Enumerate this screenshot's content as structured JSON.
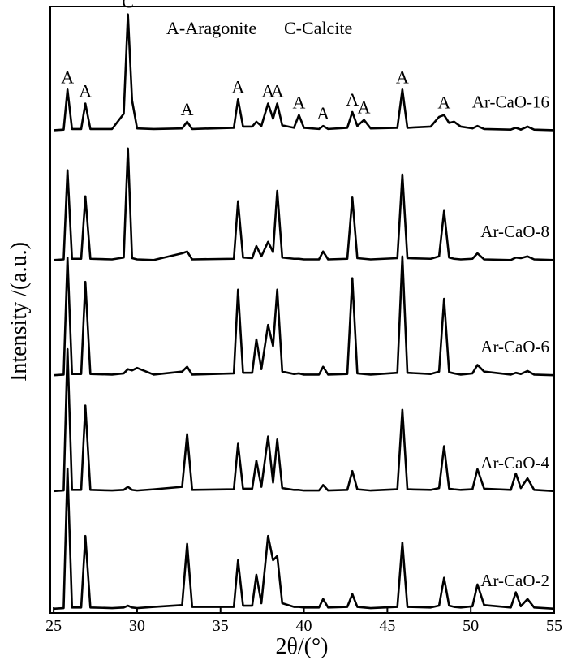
{
  "chart_data": {
    "type": "line",
    "xlabel": "2θ/(°)",
    "ylabel": "Intensity /(a.u.)",
    "legend_text": [
      "A-Aragonite",
      "C-Calcite"
    ],
    "xlim": [
      24.8,
      55
    ],
    "xticks": [
      25,
      30,
      35,
      40,
      45,
      50,
      55
    ],
    "ylim": [
      0,
      100
    ],
    "x": [
      25,
      25.6,
      25.83,
      26.1,
      26.65,
      26.9,
      27.2,
      28.5,
      29.2,
      29.45,
      29.7,
      30.0,
      31,
      32.7,
      33.0,
      33.3,
      35.8,
      36.05,
      36.35,
      36.9,
      37.15,
      37.45,
      37.85,
      38.15,
      38.4,
      38.7,
      39.4,
      39.7,
      40.0,
      40.9,
      41.15,
      41.45,
      42.6,
      42.9,
      43.2,
      43.6,
      44,
      45.6,
      45.9,
      46.2,
      47.6,
      48.1,
      48.4,
      48.7,
      49.0,
      49.4,
      50.1,
      50.4,
      50.8,
      52.4,
      52.7,
      53.0,
      53.4,
      53.8,
      55
    ],
    "series": [
      {
        "name": "Ar-CaO-16",
        "color": "#000000",
        "values": [
          79.6,
          79.7,
          86.3,
          79.8,
          79.8,
          84.0,
          79.8,
          79.8,
          82.3,
          98.7,
          84.5,
          79.9,
          79.8,
          79.9,
          81.0,
          79.8,
          80.0,
          84.7,
          80.2,
          80.2,
          81.0,
          80.3,
          84.0,
          81.5,
          84.0,
          80.4,
          80.0,
          82.1,
          80.0,
          79.8,
          80.3,
          79.8,
          80.0,
          82.6,
          80.3,
          81.3,
          79.9,
          80.0,
          86.3,
          80.0,
          80.2,
          81.8,
          82.1,
          80.8,
          81.0,
          80.2,
          79.9,
          80.3,
          79.8,
          79.7,
          80.0,
          79.7,
          80.2,
          79.7,
          79.6
        ]
      },
      {
        "name": "Ar-CaO-8",
        "color": "#000000",
        "values": [
          58.2,
          58.3,
          73.0,
          58.4,
          58.4,
          68.7,
          58.4,
          58.3,
          58.6,
          76.6,
          58.5,
          58.3,
          58.2,
          59.3,
          59.6,
          58.3,
          58.4,
          67.9,
          58.6,
          58.5,
          60.5,
          58.8,
          61.2,
          59.5,
          69.6,
          58.6,
          58.4,
          58.4,
          58.3,
          58.3,
          59.6,
          58.3,
          58.4,
          68.5,
          58.5,
          58.4,
          58.3,
          58.5,
          72.3,
          58.5,
          58.4,
          58.8,
          66.3,
          58.6,
          58.4,
          58.3,
          58.4,
          59.3,
          58.3,
          58.2,
          58.6,
          58.5,
          58.8,
          58.3,
          58.2
        ]
      },
      {
        "name": "Ar-CaO-6",
        "color": "#000000",
        "values": [
          39.2,
          39.3,
          58.6,
          39.4,
          39.4,
          54.6,
          39.4,
          39.3,
          39.5,
          40.2,
          40.0,
          40.4,
          39.3,
          39.8,
          40.6,
          39.3,
          39.5,
          53.3,
          39.6,
          39.6,
          45.1,
          40.2,
          47.5,
          44.0,
          53.3,
          39.8,
          39.4,
          39.5,
          39.3,
          39.3,
          40.6,
          39.3,
          39.4,
          55.2,
          39.5,
          39.4,
          39.3,
          39.6,
          58.8,
          39.6,
          39.4,
          39.8,
          51.8,
          39.7,
          39.5,
          39.3,
          39.5,
          40.9,
          39.8,
          39.3,
          39.6,
          39.4,
          39.9,
          39.3,
          39.2
        ]
      },
      {
        "name": "Ar-CaO-4",
        "color": "#000000",
        "values": [
          20.1,
          20.2,
          43.5,
          20.3,
          20.3,
          34.2,
          20.3,
          20.2,
          20.3,
          20.8,
          20.3,
          20.2,
          20.4,
          20.8,
          29.5,
          20.3,
          20.4,
          27.9,
          20.5,
          20.5,
          25.1,
          20.8,
          29.1,
          21.5,
          28.6,
          20.6,
          20.3,
          20.3,
          20.2,
          20.2,
          21.1,
          20.2,
          20.3,
          23.4,
          20.4,
          20.3,
          20.2,
          20.4,
          33.5,
          20.4,
          20.3,
          20.6,
          27.5,
          20.5,
          20.4,
          20.3,
          20.4,
          23.7,
          20.5,
          20.3,
          23.0,
          20.6,
          22.2,
          20.3,
          20.1
        ]
      },
      {
        "name": "Ar-CaO-2",
        "color": "#000000",
        "values": [
          0.7,
          0.8,
          23.8,
          0.9,
          0.9,
          12.7,
          0.9,
          0.8,
          0.9,
          1.2,
          0.9,
          0.8,
          1.0,
          1.3,
          11.4,
          1.0,
          1.0,
          8.7,
          1.2,
          1.2,
          6.3,
          1.6,
          12.7,
          8.7,
          9.4,
          1.6,
          1.0,
          1.0,
          0.9,
          0.9,
          2.3,
          0.9,
          1.0,
          3.1,
          1.0,
          0.9,
          0.8,
          1.0,
          11.6,
          1.0,
          0.9,
          1.2,
          5.8,
          1.2,
          1.0,
          0.9,
          1.1,
          4.7,
          1.3,
          0.9,
          3.4,
          1.1,
          2.3,
          0.9,
          0.7
        ]
      }
    ],
    "peak_labels": [
      {
        "text": "A",
        "x": 25.83
      },
      {
        "text": "A",
        "x": 26.9
      },
      {
        "text": "C",
        "x": 29.45
      },
      {
        "text": "A",
        "x": 33.0
      },
      {
        "text": "A",
        "x": 36.05
      },
      {
        "text": "A",
        "x": 37.85
      },
      {
        "text": "A",
        "x": 38.4
      },
      {
        "text": "A",
        "x": 39.7
      },
      {
        "text": "A",
        "x": 41.15
      },
      {
        "text": "A",
        "x": 42.9
      },
      {
        "text": "A",
        "x": 43.6
      },
      {
        "text": "A",
        "x": 45.9
      },
      {
        "text": "A",
        "x": 48.4
      }
    ]
  }
}
